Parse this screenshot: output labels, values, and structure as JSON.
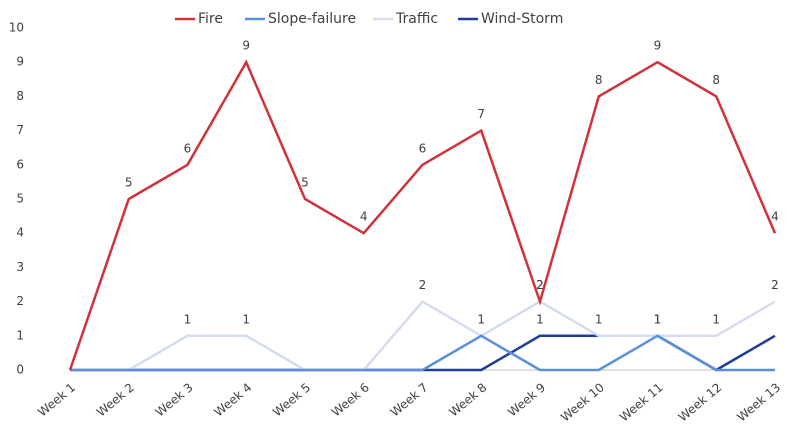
{
  "chart_data": {
    "type": "line",
    "categories": [
      "Week 1",
      "Week 2",
      "Week 3",
      "Week 4",
      "Week 5",
      "Week 6",
      "Week 7",
      "Week 8",
      "Week 9",
      "Week 10",
      "Week 11",
      "Week 12",
      "Week 13"
    ],
    "series": [
      {
        "name": "Fire",
        "color": "#d0323c",
        "values": [
          0,
          5,
          6,
          9,
          5,
          4,
          6,
          7,
          2,
          8,
          9,
          8,
          4
        ],
        "value_labels": [
          null,
          "5",
          "6",
          "9",
          "5",
          "4",
          "6",
          "7",
          "2",
          "8",
          "9",
          "8",
          "4"
        ]
      },
      {
        "name": "Slope-failure",
        "color": "#5b8fd8",
        "values": [
          0,
          0,
          0,
          0,
          0,
          0,
          0,
          1,
          0,
          0,
          1,
          0,
          0
        ]
      },
      {
        "name": "Traffic",
        "color": "#d5dcee",
        "values": [
          0,
          0,
          1,
          1,
          0,
          0,
          2,
          1,
          2,
          1,
          1,
          1,
          2
        ],
        "value_labels": [
          null,
          null,
          "1",
          "1",
          null,
          null,
          "2",
          "1",
          "2",
          "1",
          "1",
          "1",
          "2"
        ]
      },
      {
        "name": "Wind-Storm",
        "color": "#1f3d99",
        "values": [
          0,
          0,
          0,
          0,
          0,
          0,
          0,
          0,
          1,
          1,
          1,
          0,
          1
        ],
        "value_labels": [
          null,
          null,
          null,
          null,
          null,
          null,
          null,
          null,
          "1",
          null,
          "1",
          null,
          null
        ]
      }
    ],
    "ylim": [
      0,
      10
    ],
    "yticks": [
      0,
      1,
      2,
      3,
      4,
      5,
      6,
      7,
      8,
      9,
      10
    ],
    "grid": false,
    "legend": "top"
  }
}
